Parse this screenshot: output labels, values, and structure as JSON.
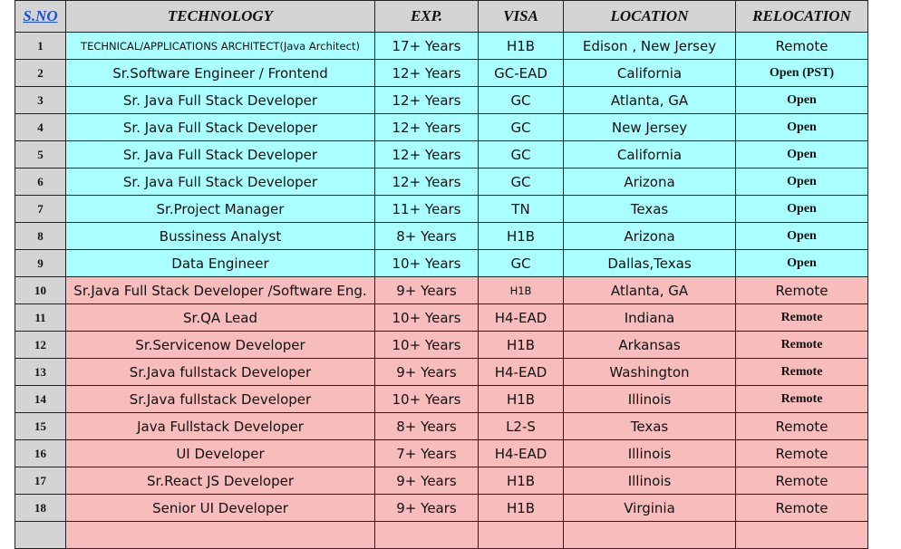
{
  "headers": {
    "sno": "S.NO",
    "technology": "TECHNOLOGY",
    "exp": "EXP.",
    "visa": "VISA",
    "location": "LOCATION",
    "relocation": "RELOCATION"
  },
  "colors": {
    "header": "#d4d4d4",
    "blue_rows": "#aaffff",
    "pink_rows": "#f7bcbc",
    "link": "#1a4fd6"
  },
  "rows": [
    {
      "sno": "1",
      "technology": "TECHNICAL/APPLICATIONS ARCHITECT(Java Architect)",
      "exp": "17+ Years",
      "visa": "H1B",
      "location": "Edison , New Jersey",
      "relocation": "Remote",
      "group": "blue"
    },
    {
      "sno": "2",
      "technology": "Sr.Software Engineer / Frontend",
      "exp": "12+ Years",
      "visa": "GC-EAD",
      "location": "California",
      "relocation": "Open (PST)",
      "group": "blue"
    },
    {
      "sno": "3",
      "technology": "Sr. Java Full Stack Developer",
      "exp": "12+ Years",
      "visa": "GC",
      "location": "Atlanta, GA",
      "relocation": "Open",
      "group": "blue"
    },
    {
      "sno": "4",
      "technology": "Sr. Java Full Stack Developer",
      "exp": "12+ Years",
      "visa": "GC",
      "location": "New Jersey",
      "relocation": "Open",
      "group": "blue"
    },
    {
      "sno": "5",
      "technology": "Sr. Java Full Stack Developer",
      "exp": "12+ Years",
      "visa": "GC",
      "location": "California",
      "relocation": "Open",
      "group": "blue"
    },
    {
      "sno": "6",
      "technology": "Sr. Java Full Stack Developer",
      "exp": "12+ Years",
      "visa": "GC",
      "location": "Arizona",
      "relocation": "Open",
      "group": "blue"
    },
    {
      "sno": "7",
      "technology": "Sr.Project Manager",
      "exp": "11+ Years",
      "visa": "TN",
      "location": "Texas",
      "relocation": "Open",
      "group": "blue"
    },
    {
      "sno": "8",
      "technology": "Bussiness Analyst",
      "exp": "8+ Years",
      "visa": "H1B",
      "location": "Arizona",
      "relocation": "Open",
      "group": "blue"
    },
    {
      "sno": "9",
      "technology": "Data Engineer",
      "exp": "10+ Years",
      "visa": "GC",
      "location": "Dallas,Texas",
      "relocation": "Open",
      "group": "blue"
    },
    {
      "sno": "10",
      "technology": "Sr.Java Full Stack Developer /Software Eng.",
      "exp": "9+ Years",
      "visa": "H1B",
      "location": "Atlanta, GA",
      "relocation": "Remote",
      "group": "pink"
    },
    {
      "sno": "11",
      "technology": "Sr.QA Lead",
      "exp": "10+ Years",
      "visa": "H4-EAD",
      "location": "Indiana",
      "relocation": "Remote",
      "group": "pink"
    },
    {
      "sno": "12",
      "technology": "Sr.Servicenow Developer",
      "exp": "10+ Years",
      "visa": "H1B",
      "location": "Arkansas",
      "relocation": "Remote",
      "group": "pink"
    },
    {
      "sno": "13",
      "technology": "Sr.Java fullstack Developer",
      "exp": "9+ Years",
      "visa": "H4-EAD",
      "location": "Washington",
      "relocation": "Remote",
      "group": "pink"
    },
    {
      "sno": "14",
      "technology": "Sr.Java fullstack Developer",
      "exp": "10+ Years",
      "visa": "H1B",
      "location": "Illinois",
      "relocation": "Remote",
      "group": "pink"
    },
    {
      "sno": "15",
      "technology": "Java Fullstack Developer",
      "exp": "8+ Years",
      "visa": "L2-S",
      "location": "Texas",
      "relocation": "Remote",
      "group": "pink"
    },
    {
      "sno": "16",
      "technology": "UI Developer",
      "exp": "7+ Years",
      "visa": "H4-EAD",
      "location": "Illinois",
      "relocation": "Remote",
      "group": "pink"
    },
    {
      "sno": "17",
      "technology": "Sr.React JS Developer",
      "exp": "9+ Years",
      "visa": "H1B",
      "location": "Illinois",
      "relocation": "Remote",
      "group": "pink"
    },
    {
      "sno": "18",
      "technology": "Senior UI Developer",
      "exp": "9+ Years",
      "visa": "H1B",
      "location": "Virginia",
      "relocation": "Remote",
      "group": "pink"
    }
  ]
}
